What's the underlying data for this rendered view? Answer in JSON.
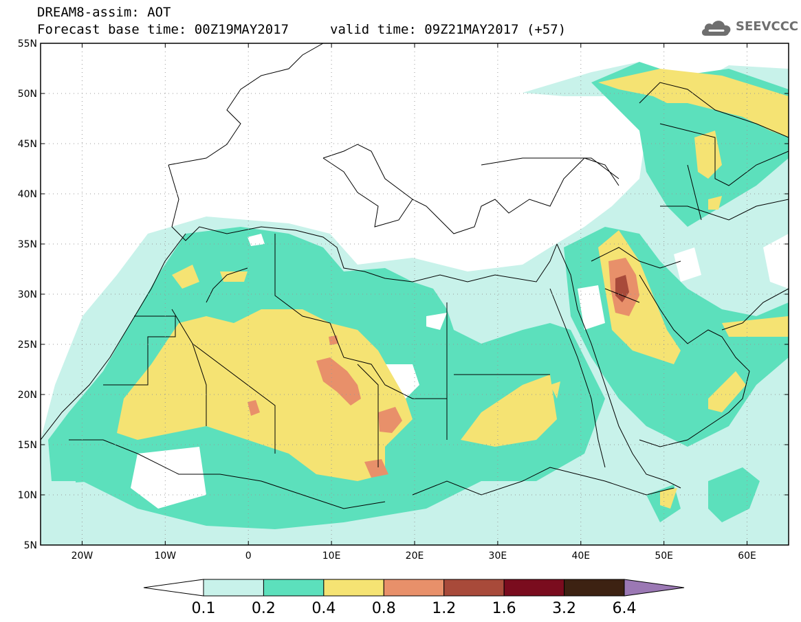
{
  "title": {
    "line1": "DREAM8-assim: AOT",
    "base_time": "Forecast base time: 00Z19MAY2017",
    "valid_time": "valid time: 09Z21MAY2017 (+57)"
  },
  "logo": {
    "text": "SEEVCCC",
    "icon": "cloud-icon"
  },
  "map": {
    "lon_range": [
      -25,
      65
    ],
    "lat_range": [
      5,
      55
    ],
    "lat_ticks": [
      {
        "value": 55,
        "label": "55N"
      },
      {
        "value": 50,
        "label": "50N"
      },
      {
        "value": 45,
        "label": "45N"
      },
      {
        "value": 40,
        "label": "40N"
      },
      {
        "value": 35,
        "label": "35N"
      },
      {
        "value": 30,
        "label": "30N"
      },
      {
        "value": 25,
        "label": "25N"
      },
      {
        "value": 20,
        "label": "20N"
      },
      {
        "value": 15,
        "label": "15N"
      },
      {
        "value": 10,
        "label": "10N"
      },
      {
        "value": 5,
        "label": "5N"
      }
    ],
    "lon_ticks": [
      {
        "value": -20,
        "label": "20W"
      },
      {
        "value": -10,
        "label": "10W"
      },
      {
        "value": 0,
        "label": "0"
      },
      {
        "value": 10,
        "label": "10E"
      },
      {
        "value": 20,
        "label": "20E"
      },
      {
        "value": 30,
        "label": "30E"
      },
      {
        "value": 40,
        "label": "40E"
      },
      {
        "value": 50,
        "label": "50E"
      },
      {
        "value": 60,
        "label": "60E"
      }
    ],
    "grid": true
  },
  "colorbar": {
    "labels": [
      "0.1",
      "0.2",
      "0.4",
      "0.8",
      "1.2",
      "1.6",
      "3.2",
      "6.4"
    ],
    "colors": [
      "#ffffff",
      "#c8f2ea",
      "#5ce0bc",
      "#f5e373",
      "#e8906a",
      "#a84a3a",
      "#7a0c1e",
      "#3d2212",
      "#9b78b4"
    ]
  }
}
